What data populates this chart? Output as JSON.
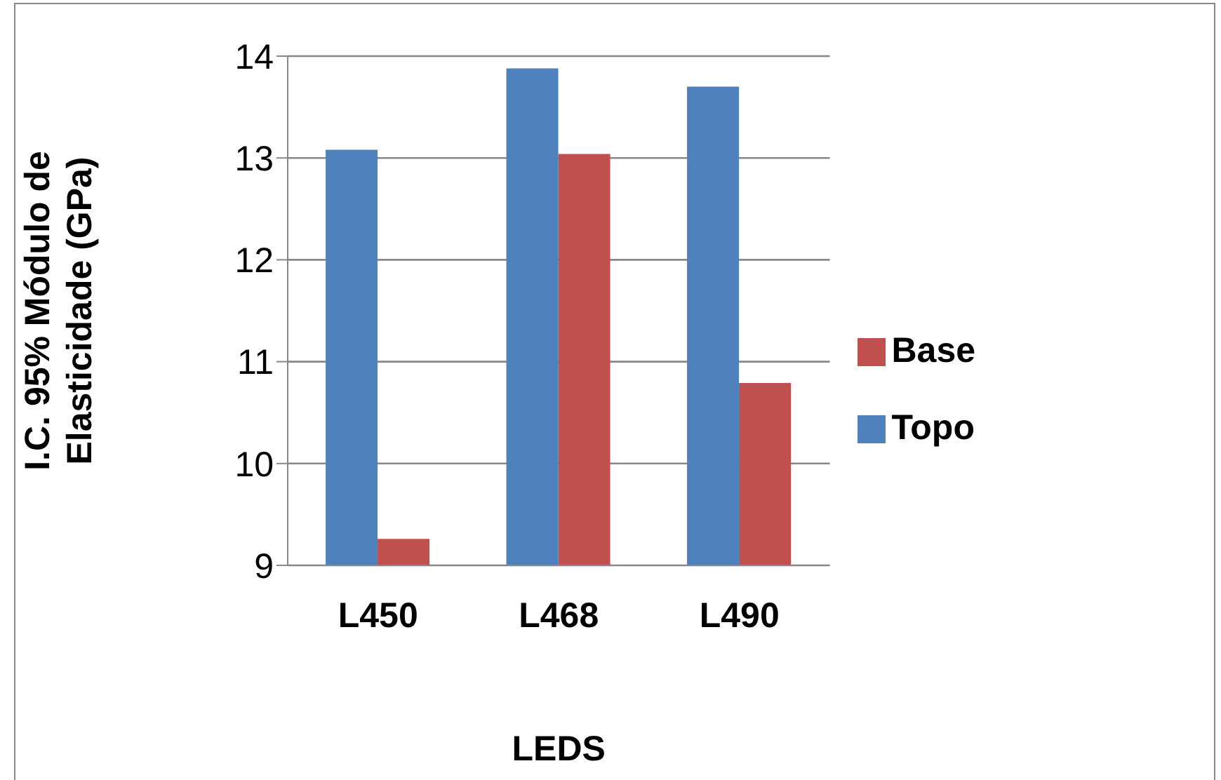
{
  "chart_data": {
    "type": "bar",
    "xlabel": "LEDS",
    "ylabel": "I.C. 95% Módulo de Elasticidade (GPa)",
    "categories": [
      "L450",
      "L468",
      "L490"
    ],
    "series": [
      {
        "name": "Topo",
        "color": "#4f81bd",
        "values": [
          13.08,
          13.88,
          13.7
        ]
      },
      {
        "name": "Base",
        "color": "#c0504d",
        "values": [
          9.26,
          13.04,
          10.79
        ]
      }
    ],
    "ylim": [
      9,
      14
    ],
    "yticks": [
      9,
      10,
      11,
      12,
      13,
      14
    ],
    "grid": "y",
    "legend": "right"
  }
}
